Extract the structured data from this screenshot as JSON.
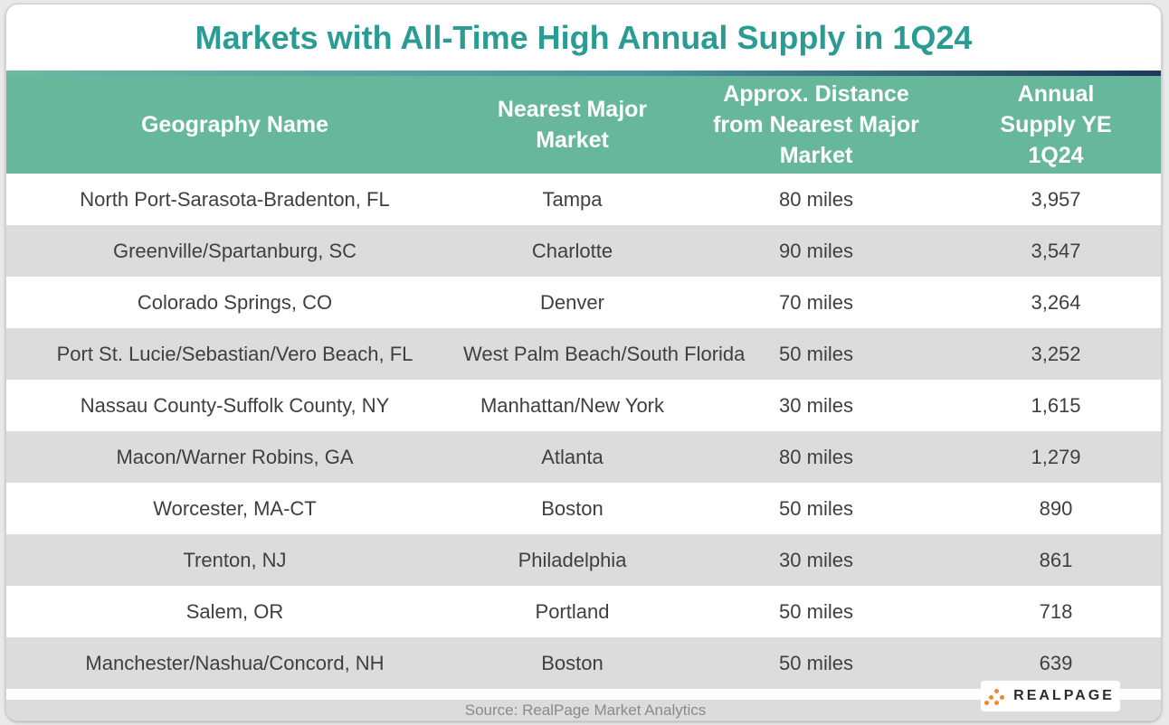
{
  "title": "Markets with All-Time High Annual Supply in 1Q24",
  "columns": [
    "Geography Name",
    "Nearest Major Market",
    "Approx. Distance from Nearest Major Market",
    "Annual Supply YE 1Q24"
  ],
  "rows": [
    {
      "geography": "North Port-Sarasota-Bradenton, FL",
      "market": "Tampa",
      "distance": "80 miles",
      "supply": "3,957"
    },
    {
      "geography": "Greenville/Spartanburg, SC",
      "market": "Charlotte",
      "distance": "90 miles",
      "supply": "3,547"
    },
    {
      "geography": "Colorado Springs, CO",
      "market": "Denver",
      "distance": "70 miles",
      "supply": "3,264"
    },
    {
      "geography": "Port St. Lucie/Sebastian/Vero Beach, FL",
      "market": "West Palm Beach/South Florida",
      "distance": "50 miles",
      "supply": "3,252"
    },
    {
      "geography": "Nassau County-Suffolk County, NY",
      "market": "Manhattan/New York",
      "distance": "30 miles",
      "supply": "1,615"
    },
    {
      "geography": "Macon/Warner Robins, GA",
      "market": "Atlanta",
      "distance": "80 miles",
      "supply": "1,279"
    },
    {
      "geography": "Worcester, MA-CT",
      "market": "Boston",
      "distance": "50 miles",
      "supply": "890"
    },
    {
      "geography": "Trenton, NJ",
      "market": "Philadelphia",
      "distance": "30 miles",
      "supply": "861"
    },
    {
      "geography": "Salem, OR",
      "market": "Portland",
      "distance": "50 miles",
      "supply": "718"
    },
    {
      "geography": "Manchester/Nashua/Concord, NH",
      "market": "Boston",
      "distance": "50 miles",
      "supply": "639"
    }
  ],
  "source": "Source: RealPage Market Analytics",
  "logo": {
    "text": "REALPAGE",
    "icon": "realpage-dots-icon",
    "accent": "#f08a24"
  },
  "colors": {
    "title": "#2a9c93",
    "header": "#67b79d",
    "stripe": "#dcdcdc"
  }
}
